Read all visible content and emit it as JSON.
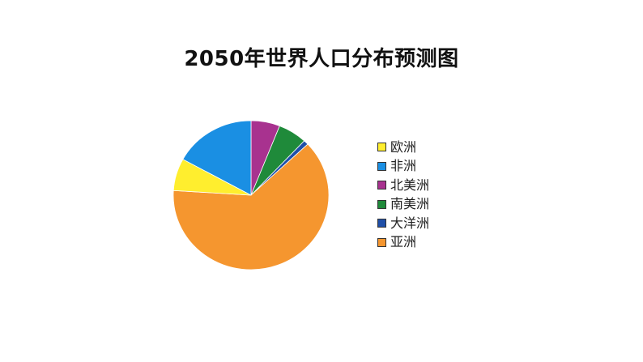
{
  "chart_data": {
    "type": "pie",
    "title": "2050年世界人口分布预测图",
    "categories": [
      "欧洲",
      "非洲",
      "北美洲",
      "南美洲",
      "大洋洲",
      "亚洲"
    ],
    "values": [
      7,
      17,
      6,
      6,
      1,
      63
    ],
    "unit": "",
    "colors": [
      "#ffee2e",
      "#1a8fe3",
      "#a8328f",
      "#1f8a3a",
      "#1f4fa8",
      "#f5962f"
    ],
    "legend_position": "right",
    "slice_order_clockwise_from_top": [
      "北美洲",
      "南美洲",
      "大洋洲",
      "亚洲",
      "欧洲",
      "非洲"
    ]
  }
}
